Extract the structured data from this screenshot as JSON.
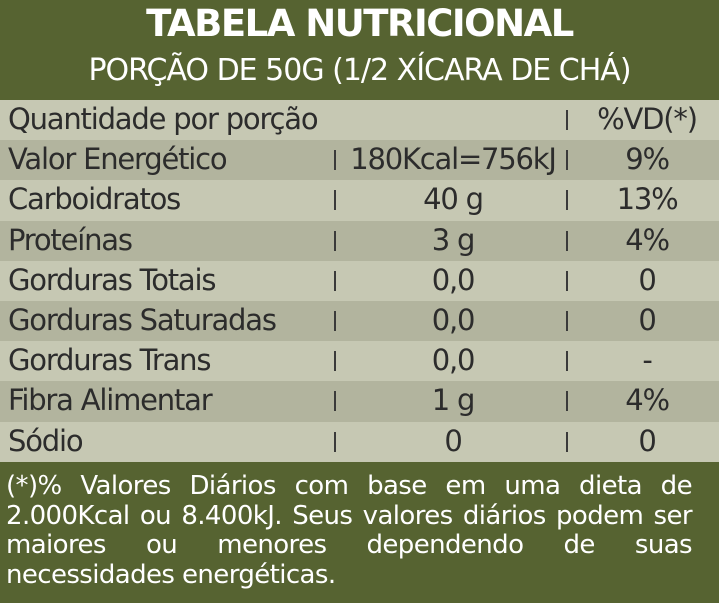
{
  "header": {
    "title": "TABELA NUTRICIONAL",
    "subtitle": "PORÇÃO DE 50G (1/2 XÍCARA DE CHÁ)"
  },
  "table": {
    "header_row": {
      "label": "Quantidade por porção",
      "vd": "%VD(*)"
    },
    "rows": [
      {
        "name": "Valor Energético",
        "qty": "180Kcal=756kJ",
        "vd": "9%"
      },
      {
        "name": "Carboidratos",
        "qty": "40 g",
        "vd": "13%"
      },
      {
        "name": "Proteínas",
        "qty": "3 g",
        "vd": "4%"
      },
      {
        "name": "Gorduras Totais",
        "qty": "0,0",
        "vd": "0"
      },
      {
        "name": "Gorduras Saturadas",
        "qty": "0,0",
        "vd": "0"
      },
      {
        "name": "Gorduras Trans",
        "qty": "0,0",
        "vd": "-"
      },
      {
        "name": "Fibra Alimentar",
        "qty": "1 g",
        "vd": "4%"
      },
      {
        "name": "Sódio",
        "qty": "0",
        "vd": "0"
      }
    ]
  },
  "footer": {
    "note": "(*)% Valores Diários com base em uma dieta de 2.000Kcal ou 8.400kJ. Seus valores diários podem ser maiores ou menores dependendo de suas necessidades energéticas."
  },
  "colors": {
    "header_bg": "#566331",
    "row_light": "#c6c8b3",
    "row_dark": "#b2b49e",
    "text_dark": "#2c2c2c",
    "text_light": "#ffffff"
  }
}
